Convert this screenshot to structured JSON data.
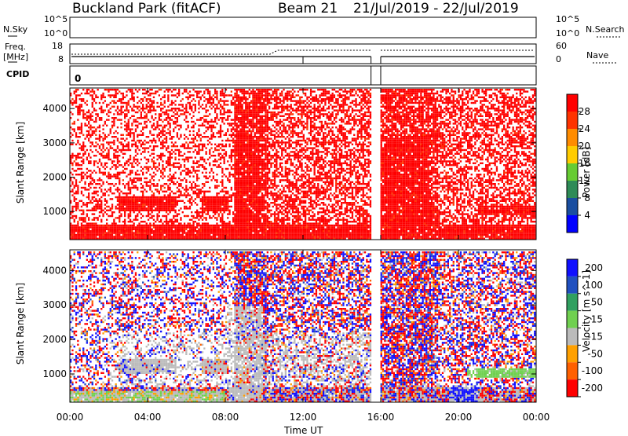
{
  "header": {
    "station": "Buckland Park (fitACF)",
    "beam": "Beam 21",
    "dates": "21/Jul/2019 - 22/Jul/2019"
  },
  "strips": {
    "nsky_label": "N.Sky",
    "nsky_ticks": [
      "10^5",
      "10^0"
    ],
    "nsearch_label": "N.Search",
    "nsearch_ticks": [
      "10^5",
      "10^0"
    ],
    "freq_label": "Freq.",
    "freq_unit": "[MHz]",
    "freq_ticks": [
      "18",
      "8"
    ],
    "nave_label": "Nave",
    "nave_ticks": [
      "60",
      "0"
    ],
    "cpid_label": "CPID",
    "cpid_value": "0"
  },
  "colors": {
    "power": [
      "#0000ff",
      "#1a4ea0",
      "#2e8b57",
      "#66cc33",
      "#ffcc00",
      "#ff8c00",
      "#ff3300",
      "#ff0000"
    ],
    "velocity": [
      "#1010ff",
      "#2050c0",
      "#30a060",
      "#70d050",
      "#bbbbbb",
      "#ffa000",
      "#ff6000",
      "#ff0000"
    ],
    "ground_scatter": "#bbbbbb"
  },
  "chart_data": [
    {
      "type": "heatmap",
      "ylabel": "Slant Range [km]",
      "yticks": [
        "1000",
        "2000",
        "3000",
        "4000"
      ],
      "ylim": [
        180,
        4600
      ],
      "xlim": [
        0,
        24
      ],
      "colorbar": {
        "label": "Power [dB]",
        "ticks": [
          "4",
          "8",
          "12",
          "16",
          "20",
          "24",
          "28"
        ],
        "range": [
          0,
          32
        ]
      },
      "data_gaps_ut": [
        [
          15.5,
          16.0
        ]
      ],
      "dominant_value": "red (~28+ dB) throughout"
    },
    {
      "type": "heatmap",
      "ylabel": "Slant Range [km]",
      "yticks": [
        "1000",
        "2000",
        "3000",
        "4000"
      ],
      "ylim": [
        180,
        4600
      ],
      "xlim": [
        0,
        24
      ],
      "xticks": [
        "00:00",
        "04:00",
        "08:00",
        "12:00",
        "16:00",
        "20:00",
        "00:00"
      ],
      "xlabel": "Time UT",
      "colorbar": {
        "label": "Velocity [m s^-1]",
        "ticks": [
          "200",
          "100",
          "50",
          "15",
          "-15",
          "-50",
          "-100",
          "-200"
        ],
        "range": [
          -250,
          250
        ]
      },
      "data_gaps_ut": [
        [
          15.5,
          16.0
        ]
      ]
    }
  ]
}
